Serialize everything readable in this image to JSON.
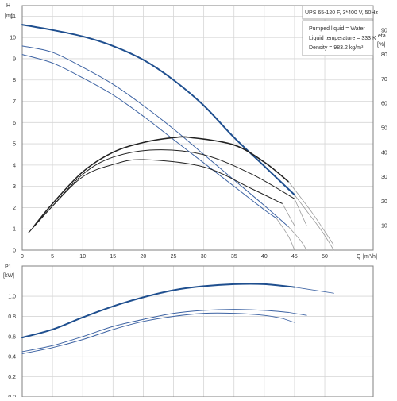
{
  "chart_data": [
    {
      "type": "line",
      "title": "UPS 65-120 F, 3*400 V, 50Hz",
      "info_lines": [
        "Pumped liquid = Water",
        "Liquid temperature = 333 K",
        "Density = 983.2 kg/m³"
      ],
      "ylabel": "H",
      "yunit": "[m]",
      "y2label": "eta",
      "y2unit": "[%]",
      "xlabel": "Q",
      "xunit": "[m³/h]",
      "xlim": [
        0,
        58
      ],
      "ylim": [
        0,
        11.5
      ],
      "y2lim": [
        0,
        100
      ],
      "xticks": [
        0,
        5,
        10,
        15,
        20,
        25,
        30,
        35,
        40,
        45,
        50
      ],
      "yticks": [
        0,
        1,
        2,
        3,
        4,
        5,
        6,
        7,
        8,
        9,
        10,
        11
      ],
      "y2ticks": [
        10,
        20,
        30,
        40,
        50,
        60,
        70,
        80,
        90
      ],
      "grid": true,
      "series": [
        {
          "axis": "y",
          "x": [
            0,
            5,
            10,
            15,
            20,
            25,
            30,
            35,
            40,
            45
          ],
          "values": [
            10.6,
            10.35,
            10.05,
            9.6,
            8.95,
            8.0,
            6.8,
            5.3,
            3.95,
            2.6
          ]
        },
        {
          "axis": "y",
          "x": [
            45,
            47,
            49.5,
            51.5
          ],
          "values": [
            2.6,
            1.85,
            0.9,
            0.0
          ]
        },
        {
          "axis": "y",
          "x": [
            0,
            5,
            10,
            15,
            20,
            25,
            30,
            35,
            40,
            44
          ],
          "values": [
            9.6,
            9.3,
            8.6,
            7.8,
            6.8,
            5.7,
            4.5,
            3.3,
            2.1,
            1.1
          ]
        },
        {
          "axis": "y",
          "x": [
            44,
            46,
            47
          ],
          "values": [
            1.1,
            0.45,
            0.0
          ]
        },
        {
          "axis": "y",
          "x": [
            0,
            5,
            10,
            15,
            20,
            25,
            30,
            35,
            40,
            42
          ],
          "values": [
            9.2,
            8.8,
            8.1,
            7.3,
            6.3,
            5.2,
            4.1,
            3.0,
            1.9,
            1.5
          ]
        },
        {
          "axis": "y",
          "x": [
            42,
            44,
            45
          ],
          "values": [
            1.5,
            0.65,
            0.0
          ]
        },
        {
          "axis": "y2",
          "x": [
            2,
            5,
            10,
            15,
            20,
            25,
            28,
            35,
            40,
            44
          ],
          "values": [
            10,
            19,
            32,
            40,
            44,
            46,
            46,
            43,
            36,
            28
          ]
        },
        {
          "axis": "y2",
          "x": [
            44,
            48,
            51.5
          ],
          "values": [
            28,
            15,
            2
          ]
        },
        {
          "axis": "y2",
          "x": [
            1,
            5,
            10,
            15,
            22,
            30,
            38,
            45
          ],
          "values": [
            7,
            18,
            31,
            38,
            41,
            39,
            31,
            21
          ]
        },
        {
          "axis": "y2",
          "x": [
            45,
            47
          ],
          "values": [
            21,
            10
          ]
        },
        {
          "axis": "y2",
          "x": [
            1,
            5,
            10,
            15,
            20,
            30,
            38,
            43
          ],
          "values": [
            7,
            18,
            30,
            35,
            37,
            34,
            25,
            19
          ]
        },
        {
          "axis": "y2",
          "x": [
            43,
            45
          ],
          "values": [
            19,
            10
          ]
        }
      ]
    },
    {
      "type": "line",
      "ylabel": "P1",
      "yunit": "[kW]",
      "xlim": [
        0,
        58
      ],
      "ylim": [
        0.0,
        1.3
      ],
      "yticks": [
        0.0,
        0.2,
        0.4,
        0.6,
        0.8,
        1.0
      ],
      "grid": true,
      "series": [
        {
          "x": [
            0,
            5,
            10,
            15,
            20,
            25,
            30,
            35,
            40,
            45
          ],
          "values": [
            0.59,
            0.67,
            0.79,
            0.9,
            0.99,
            1.06,
            1.1,
            1.12,
            1.12,
            1.09
          ]
        },
        {
          "x": [
            45,
            51.5
          ],
          "values": [
            1.09,
            1.03
          ]
        },
        {
          "x": [
            0,
            5,
            10,
            15,
            20,
            25,
            30,
            35,
            40,
            44
          ],
          "values": [
            0.45,
            0.51,
            0.6,
            0.7,
            0.77,
            0.83,
            0.86,
            0.87,
            0.86,
            0.84
          ]
        },
        {
          "x": [
            44,
            47
          ],
          "values": [
            0.84,
            0.81
          ]
        },
        {
          "x": [
            0,
            5,
            10,
            15,
            20,
            25,
            30,
            35,
            40,
            43
          ],
          "values": [
            0.43,
            0.49,
            0.57,
            0.67,
            0.75,
            0.8,
            0.83,
            0.83,
            0.81,
            0.78
          ]
        },
        {
          "x": [
            43,
            45
          ],
          "values": [
            0.78,
            0.74
          ]
        }
      ]
    }
  ],
  "colors": {
    "head": "#1f4f8f",
    "head_thin": "#3d63a3",
    "efficiency": "#222222",
    "extension": "#9a9a9a",
    "grid": "#d6d6d6",
    "frame": "#808080",
    "text": "#333333"
  }
}
